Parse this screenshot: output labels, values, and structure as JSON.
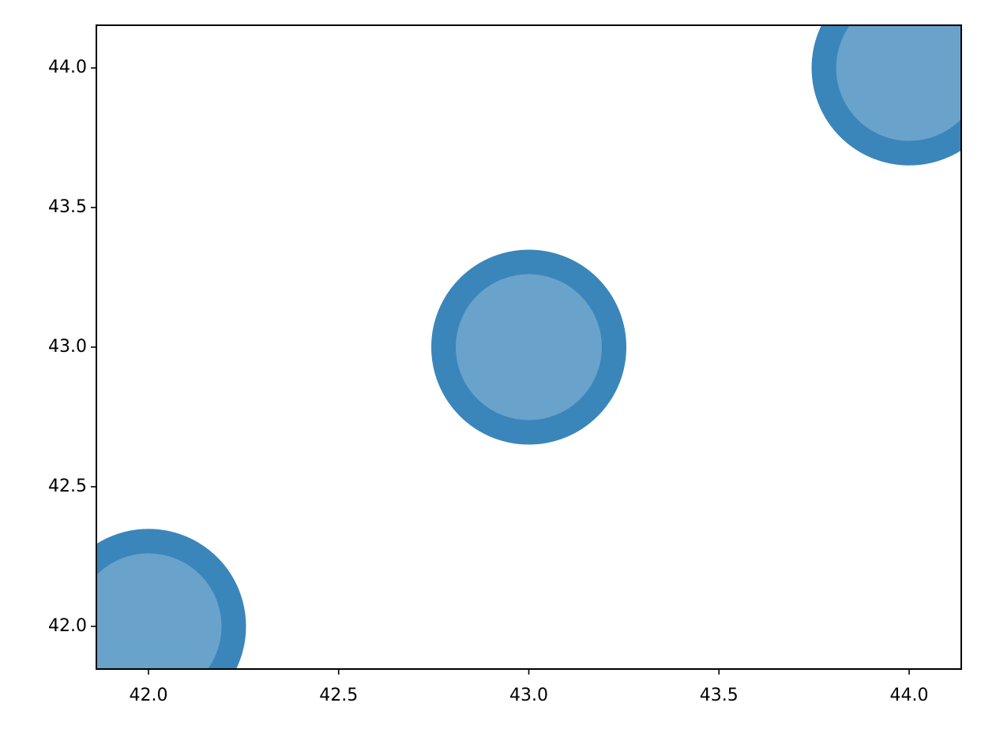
{
  "chart_data": {
    "type": "scatter",
    "x": [
      42,
      43,
      44
    ],
    "values": [
      42,
      43,
      44
    ],
    "color": "#69a2cb",
    "edgecolor": "#3a86ba",
    "xlim": [
      41.863,
      44.137
    ],
    "ylim": [
      41.847,
      44.153
    ],
    "xticks": [
      {
        "value": 42,
        "label": "42.0"
      },
      {
        "value": 42.5,
        "label": "42.5"
      },
      {
        "value": 43,
        "label": "43.0"
      },
      {
        "value": 43.5,
        "label": "43.5"
      },
      {
        "value": 44,
        "label": "44.0"
      }
    ],
    "yticks": [
      {
        "value": 42,
        "label": "42.0"
      },
      {
        "value": 42.5,
        "label": "42.5"
      },
      {
        "value": 43,
        "label": "43.0"
      },
      {
        "value": 43.5,
        "label": "43.5"
      },
      {
        "value": 44,
        "label": "44.0"
      }
    ]
  }
}
